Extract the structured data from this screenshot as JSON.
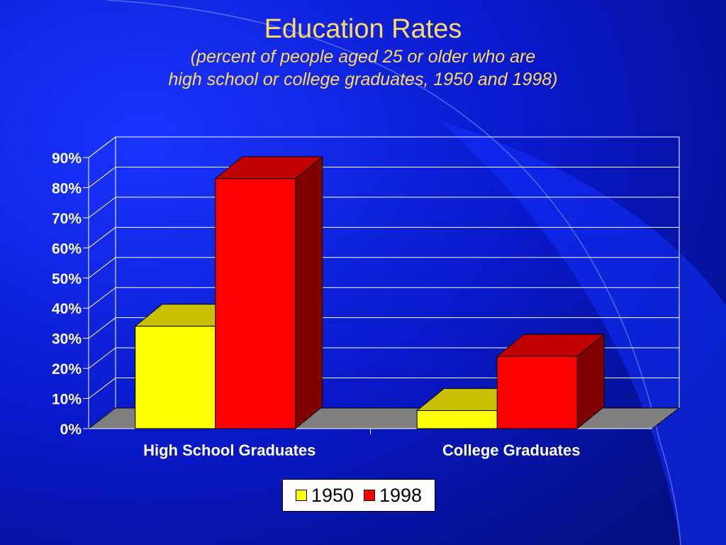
{
  "chart_data": {
    "type": "bar",
    "title": "Education Rates",
    "subtitle": [
      "(percent of people aged 25 or older who are",
      "high school or college graduates, 1950 and 1998)"
    ],
    "categories": [
      "High School Graduates",
      "College Graduates"
    ],
    "series": [
      {
        "name": "1950",
        "values": [
          34,
          6
        ],
        "color": "#FFFF00",
        "top_color": "#C8C000"
      },
      {
        "name": "1998",
        "values": [
          83,
          24
        ],
        "color": "#FF0000",
        "top_color": "#C00000",
        "side_color": "#800000"
      }
    ],
    "ylim": [
      0,
      90
    ],
    "yticks": [
      "0%",
      "10%",
      "20%",
      "30%",
      "40%",
      "50%",
      "60%",
      "70%",
      "80%",
      "90%"
    ],
    "grid": true,
    "legend": "bottom",
    "three_d": true
  },
  "colors": {
    "background": "#0A20E0",
    "title": "#FFD966",
    "floor": "#7F7F7F",
    "grid": "#FFFFFF"
  }
}
